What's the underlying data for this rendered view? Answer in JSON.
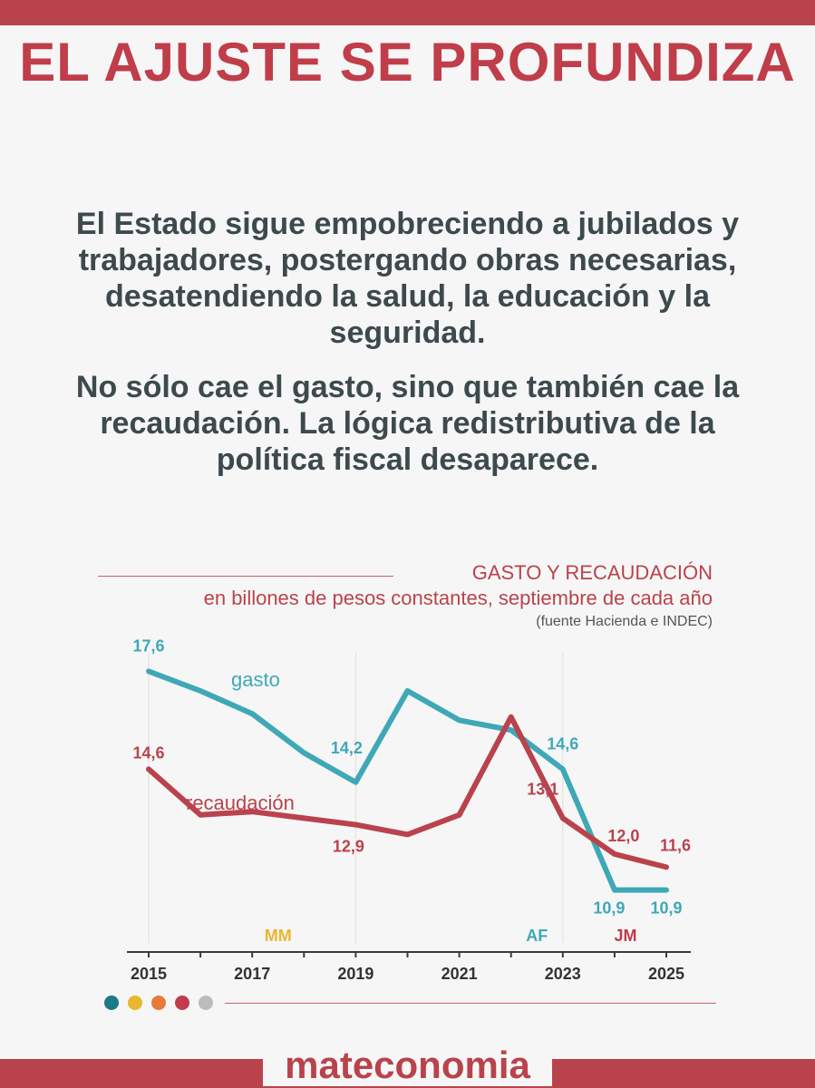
{
  "title": "EL AJUSTE SE PROFUNDIZA",
  "paragraph1": "El Estado sigue empobreciendo a jubilados y trabajadores, postergando obras necesarias, desatendiendo la salud, la educación y la seguridad.",
  "paragraph2": "No sólo cae el gasto, sino que también cae la recaudación. La lógica redistributiva de la política fiscal desaparece.",
  "brand": "mateconomia",
  "colors": {
    "red": "#b9434c",
    "teal": "#3fa8b6",
    "dots": [
      "#1b7a85",
      "#e9b62d",
      "#e87a3c",
      "#c23a4b",
      "#bcbcbc"
    ]
  },
  "chart_data": {
    "type": "line",
    "title": "GASTO Y RECAUDACIÓN",
    "subtitle": "en billones de pesos constantes, septiembre de cada año",
    "source": "(fuente Hacienda e INDEC)",
    "x": [
      2015,
      2016,
      2017,
      2018,
      2019,
      2020,
      2021,
      2022,
      2023,
      2024,
      2025
    ],
    "x_tick_labels": [
      "2015",
      "2017",
      "2019",
      "2021",
      "2023",
      "2025"
    ],
    "ylim": [
      9,
      19
    ],
    "series": [
      {
        "name": "gasto",
        "color": "#3fa8b6",
        "values": [
          17.6,
          17.0,
          16.3,
          15.1,
          14.2,
          17.0,
          16.1,
          15.8,
          14.6,
          10.9,
          10.9
        ],
        "labels": [
          {
            "i": 0,
            "text": "17,6"
          },
          {
            "i": 4,
            "text": "14,2"
          },
          {
            "i": 8,
            "text": "14,6"
          },
          {
            "i": 9,
            "text": "10,9"
          },
          {
            "i": 10,
            "text": "10,9"
          }
        ]
      },
      {
        "name": "recaudación",
        "color": "#b9434c",
        "values": [
          14.6,
          13.2,
          13.3,
          13.1,
          12.9,
          12.6,
          13.2,
          16.2,
          13.1,
          12.0,
          11.6
        ],
        "labels": [
          {
            "i": 0,
            "text": "14,6"
          },
          {
            "i": 4,
            "text": "12,9"
          },
          {
            "i": 8,
            "text": "13,1"
          },
          {
            "i": 9,
            "text": "12,0"
          },
          {
            "i": 10,
            "text": "11,6"
          }
        ]
      }
    ],
    "periods": [
      {
        "label": "MM",
        "color": "#e9b62d"
      },
      {
        "label": "AF",
        "color": "#3fa8b6"
      },
      {
        "label": "JM",
        "color": "#c23a4b"
      }
    ]
  }
}
